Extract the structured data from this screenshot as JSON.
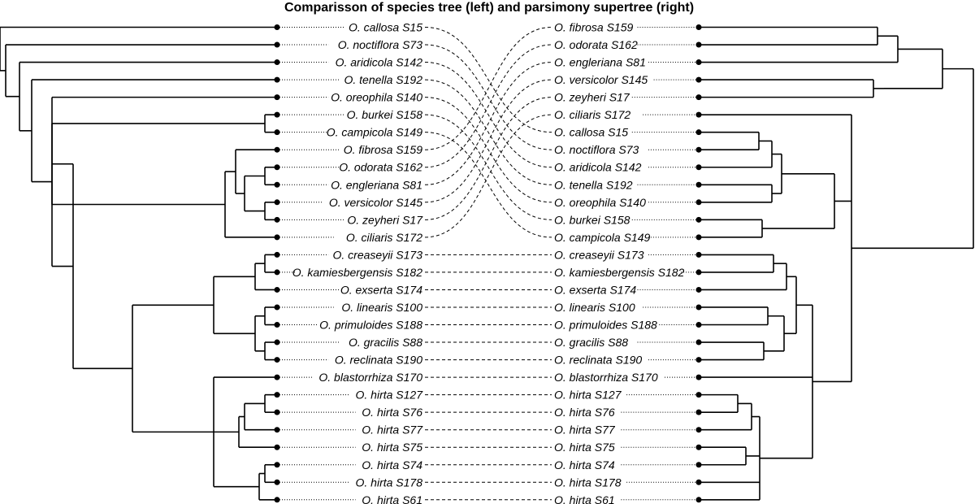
{
  "title": "Comparisson of species tree (left) and parsimony supertree (right)",
  "left_tree": {
    "taxa": [
      "O. callosa S15",
      "O. noctiflora S73",
      "O. aridicola S142",
      "O. tenella S192",
      "O. oreophila S140",
      "O. burkei S158",
      "O. campicola S149",
      "O. fibrosa S159",
      "O. odorata S162",
      "O. engleriana S81",
      "O. versicolor S145",
      "O. zeyheri S17",
      "O. ciliaris S172",
      "O. creaseyii S173",
      "O. kamiesbergensis S182",
      "O. exserta S174",
      "O. linearis S100",
      "O. primuloides S188",
      "O. gracilis S88",
      "O. reclinata S190",
      "O. blastorrhiza S170",
      "O. hirta S127",
      "O. hirta S76",
      "O. hirta S77",
      "O. hirta S75",
      "O. hirta S74",
      "O. hirta S178",
      "O. hirta S61"
    ]
  },
  "right_tree": {
    "taxa": [
      "O. fibrosa S159",
      "O. odorata S162",
      "O. engleriana S81",
      "O. versicolor S145",
      "O. zeyheri S17",
      "O. ciliaris S172",
      "O. callosa S15",
      "O. noctiflora S73",
      "O. aridicola S142",
      "O. tenella S192",
      "O. oreophila S140",
      "O. burkei S158",
      "O. campicola S149",
      "O. creaseyii S173",
      "O. kamiesbergensis S182",
      "O. exserta S174",
      "O. linearis S100",
      "O. primuloides S188",
      "O. gracilis S88",
      "O. reclinata S190",
      "O. blastorrhiza S170",
      "O. hirta S127",
      "O. hirta S76",
      "O. hirta S77",
      "O. hirta S75",
      "O. hirta S74",
      "O. hirta S178",
      "O. hirta S61"
    ]
  }
}
